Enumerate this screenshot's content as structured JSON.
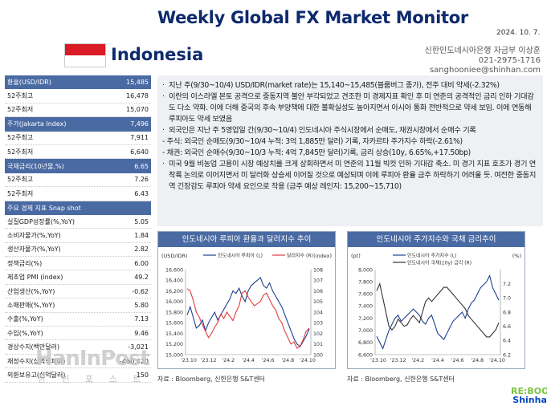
{
  "header": {
    "title": "Weekly Global FX Market Monitor",
    "date": "2024. 10. 7.",
    "country": "Indonesia"
  },
  "author": {
    "line1": "신한인도네시아은행 자금부 이상훈",
    "line2": "021-2975-1716",
    "line3": "sanghooniee@shinhan.com"
  },
  "left_table": [
    {
      "label": "환율(USD/IDR)",
      "value": "15,485",
      "head": true
    },
    {
      "label": "52주최고",
      "value": "16,478"
    },
    {
      "label": "52주최저",
      "value": "15,070"
    },
    {
      "label": "주가(Jakarta Index)",
      "value": "7,496",
      "head": true
    },
    {
      "label": "52주최고",
      "value": "7,911"
    },
    {
      "label": "52주최저",
      "value": "6,640"
    },
    {
      "label": "국채금리(10년물,%)",
      "value": "6.65",
      "head": true
    },
    {
      "label": "52주최고",
      "value": "7.26"
    },
    {
      "label": "52주최저",
      "value": "6.43"
    },
    {
      "label": "주요 경제 지표 Snap shot",
      "value": "",
      "head": true
    },
    {
      "label": "실질GDP성장률(%,YoY)",
      "value": "5.05"
    },
    {
      "label": "소비자물가(%,YoY)",
      "value": "1.84"
    },
    {
      "label": "생산자물가(%,YoY)",
      "value": "2.82"
    },
    {
      "label": "정책금리(%)",
      "value": "6.00"
    },
    {
      "label": "제조업 PMI (index)",
      "value": "49.2"
    },
    {
      "label": "산업생산(%,YoY)",
      "value": "-0.62"
    },
    {
      "label": "소매판매(%,YoY)",
      "value": "5.80"
    },
    {
      "label": "수출(%,YoY)",
      "value": "7.13"
    },
    {
      "label": "수입(%,YoY)",
      "value": "9.46"
    },
    {
      "label": "경상수지(백만달러)",
      "value": "-3,021"
    },
    {
      "label": "재정수지(십억루피아)",
      "value": "-460,420"
    },
    {
      "label": "외환보유고(십억달러)",
      "value": "150"
    }
  ],
  "bullets": {
    "b1": "지난 주(9/30~10/4) USD/IDR(market rate)는 15,140~15,485(블룸버그 종가), 전주 대비 약세(-2.32%)",
    "b2": "이란의 이스라엘 본토 공격으로 중동지역 불안 부각되었고 견조한 미 경제지표 확인 후 미 연준의 공격적인 금리 인하 기대감도 다소 약화. 이에 더해 중국의 후속 부양책에 대한 불확실성도 높아지면서 아시아 통화 전반적으로 약세 보임. 이에 연동해 루피아도 약세 보였음",
    "b3": "외국인은 지난 주 5영업일 간(9/30~10/4) 인도네시아 주식시장에서 순매도, 채권시장에서 순매수 기록",
    "b3a": "- 주식: 외국인 순매도(9/30~10/4 누적: 3억 1,885만 달러) 기록, 자카르타 주가지수 하락(-2.61%)",
    "b3b": "- 채권: 외국인 순매수(9/30~10/3 누적: 4억 7,845만 달러)기록,  금리 상승(10y, 6.65%,+17.50bp)",
    "b4": "미국 9월 비농업 고용이 시장 예상치를 크게 상회하면서 미 연준의 11월 빅컷 인하 기대감 축소. 미 경기 지표 호조가 경기 연착륙 논의로 이어지면서 미 달러화 상승세 이어질 것으로 예상되며 이에 루피아 환율 금주 하락하기 어려울 듯. 여전한 중동지역 긴장감도 루피아 약세 요인으로 작용 (금주 예상 레인지: 15,200~15,710)"
  },
  "chart1": {
    "title": "인도네시아 루피아 환율과 달러지수 추이",
    "left_unit": "(USD/IDR)",
    "right_unit": "(index)",
    "legend_l": "인도네시아 루피아 (L)",
    "legend_r": "달러지수 (R)",
    "source": "자료 : Bloomberg, 신한은행 S&T센터"
  },
  "chart2": {
    "title": "인도네시아 주가지수와 국채 금리추이",
    "left_unit": "(pt)",
    "right_unit": "(%)",
    "legend_l": "인도네시아 주가지수 (L)",
    "legend_r": "인도네시아 국채(10y) 금리 (R)",
    "source": "자료 : Bloomberg, 신한은행 S&T센터"
  },
  "chart_data": [
    {
      "type": "line",
      "title": "인도네시아 루피아 환율과 달러지수 추이",
      "xlabel": "",
      "x_ticks": [
        "'23.10",
        "'23.12",
        "'24.2",
        "'24.4",
        "'24.6",
        "'24.8",
        "'24.10"
      ],
      "y_left": {
        "label": "(USD/IDR)",
        "ylim": [
          15000,
          16600
        ],
        "ticks": [
          15000,
          15200,
          15400,
          15600,
          15800,
          16000,
          16200,
          16400,
          16600
        ]
      },
      "y_right": {
        "label": "(index)",
        "ylim": [
          100,
          108
        ],
        "ticks": [
          100,
          101,
          102,
          103,
          104,
          105,
          106,
          107,
          108
        ]
      },
      "series": [
        {
          "name": "인도네시아 루피아 (L)",
          "axis": "left",
          "color": "#1f3f8f",
          "values": [
            15750,
            15900,
            15700,
            15500,
            15550,
            15650,
            15450,
            15600,
            15700,
            15800,
            15650,
            15750,
            15850,
            15950,
            16050,
            16200,
            16150,
            16250,
            16100,
            16000,
            16200,
            16300,
            16350,
            16400,
            16450,
            16300,
            16250,
            16350,
            16200,
            16100,
            16000,
            15900,
            15750,
            15600,
            15450,
            15300,
            15200,
            15150,
            15250,
            15350,
            15485
          ]
        },
        {
          "name": "달러지수 (R)",
          "axis": "right",
          "color": "#e03b3b",
          "values": [
            106.2,
            106.0,
            105.1,
            104.0,
            103.5,
            102.8,
            102.2,
            101.6,
            102.0,
            102.6,
            103.0,
            103.8,
            103.4,
            104.0,
            103.6,
            103.2,
            104.0,
            104.6,
            105.8,
            106.0,
            105.4,
            105.0,
            104.6,
            104.8,
            105.0,
            105.6,
            105.8,
            105.2,
            104.6,
            104.2,
            103.4,
            103.0,
            102.2,
            101.6,
            101.0,
            101.2,
            100.6,
            100.8,
            101.4,
            102.2,
            102.5
          ]
        }
      ],
      "legend": "top-center"
    },
    {
      "type": "line",
      "title": "인도네시아 주가지수와 국채 금리추이",
      "xlabel": "",
      "x_ticks": [
        "'23.10",
        "'23.12",
        "'24.2",
        "'24.4",
        "'24.6",
        "'24.8",
        "'24.10"
      ],
      "y_left": {
        "label": "(pt)",
        "ylim": [
          6600,
          8000
        ],
        "ticks": [
          6600,
          6800,
          7000,
          7200,
          7400,
          7600,
          7800,
          8000
        ]
      },
      "y_right": {
        "label": "(%)",
        "ylim": [
          6.2,
          7.4
        ],
        "ticks": [
          6.2,
          6.4,
          6.6,
          6.8,
          7.0,
          7.2
        ]
      },
      "series": [
        {
          "name": "인도네시아 주가지수 (L)",
          "axis": "left",
          "color": "#1f3f8f",
          "values": [
            6900,
            6800,
            6700,
            6850,
            7000,
            7100,
            7200,
            7250,
            7150,
            7200,
            7250,
            7300,
            7350,
            7300,
            7250,
            7150,
            7100,
            7200,
            7250,
            7100,
            6950,
            6900,
            6850,
            6950,
            7050,
            7150,
            7200,
            7250,
            7300,
            7200,
            7350,
            7450,
            7500,
            7600,
            7700,
            7750,
            7800,
            7900,
            7700,
            7600,
            7496
          ]
        },
        {
          "name": "인도네시아 국채(10y) 금리 (R)",
          "axis": "right",
          "color": "#333333",
          "values": [
            7.1,
            7.2,
            7.0,
            6.8,
            6.6,
            6.55,
            6.6,
            6.7,
            6.65,
            6.6,
            6.62,
            6.7,
            6.75,
            6.7,
            6.65,
            6.8,
            6.95,
            7.0,
            6.95,
            7.0,
            7.05,
            7.1,
            7.15,
            7.15,
            7.1,
            7.05,
            7.0,
            6.95,
            6.9,
            6.85,
            6.75,
            6.7,
            6.65,
            6.6,
            6.55,
            6.5,
            6.45,
            6.45,
            6.5,
            6.55,
            6.65
          ]
        }
      ],
      "legend": "top-left"
    }
  ],
  "logo": {
    "line1": "RE:BOOT",
    "line2": "Shinhan"
  },
  "watermark": {
    "logo": "HanInPost",
    "sub": "한 인 포 스 트"
  }
}
